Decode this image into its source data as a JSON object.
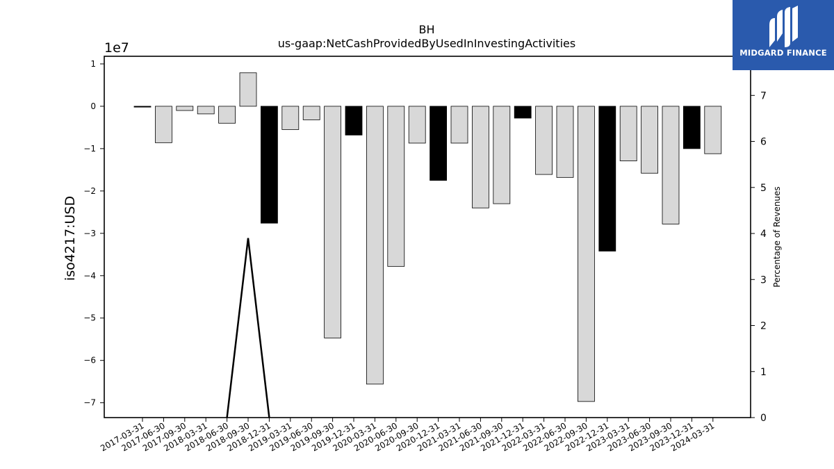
{
  "chart_data": {
    "type": "bar",
    "title": "BH",
    "subtitle": "us-gaap:NetCashProvidedByUsedInInvestingActivities",
    "ylabel": "iso4217:USD",
    "y_offset_label": "1e7",
    "y2label": "Percentage of Revenues",
    "ylim": [
      -73500000,
      11800000
    ],
    "y2lim": [
      0,
      7.85
    ],
    "yticks": [
      1,
      0,
      -1,
      -2,
      -3,
      -4,
      -5,
      -6,
      -7
    ],
    "y2ticks": [
      0,
      1,
      2,
      3,
      4,
      5,
      6,
      7
    ],
    "categories": [
      "2017-03-31",
      "2017-06-30",
      "2017-09-30",
      "2018-03-31",
      "2018-06-30",
      "2018-09-30",
      "2018-12-31",
      "2019-03-31",
      "2019-06-30",
      "2019-09-30",
      "2019-12-31",
      "2020-03-31",
      "2020-06-30",
      "2020-09-30",
      "2020-12-31",
      "2021-03-31",
      "2021-06-30",
      "2021-09-30",
      "2021-12-31",
      "2022-03-31",
      "2022-06-30",
      "2022-09-30",
      "2022-12-31",
      "2023-03-31",
      "2023-06-30",
      "2023-09-30",
      "2023-12-31",
      "2024-03-31"
    ],
    "values": [
      -200000,
      -8600000,
      -1000000,
      -1800000,
      -4000000,
      7900000,
      -27600000,
      -5500000,
      -3200000,
      -54700000,
      -6800000,
      -65600000,
      -37800000,
      -8700000,
      -17500000,
      -8700000,
      -24000000,
      -23000000,
      -2800000,
      -16100000,
      -16800000,
      -69700000,
      -34200000,
      -12900000,
      -15800000,
      -27800000,
      -10000000,
      -11200000
    ],
    "highlighted": [
      true,
      false,
      false,
      false,
      false,
      false,
      true,
      false,
      false,
      false,
      true,
      false,
      false,
      false,
      true,
      false,
      false,
      false,
      true,
      false,
      false,
      false,
      true,
      false,
      false,
      false,
      true,
      false
    ],
    "line_series": {
      "axis": "secondary",
      "points": [
        {
          "x": "2018-06-30",
          "y": 0
        },
        {
          "x": "2018-09-30",
          "y": 3.9
        },
        {
          "x": "2018-12-31",
          "y": 0
        }
      ]
    },
    "colors": {
      "bar": "#d8d8d8",
      "highlight": "#000000",
      "edge": "#000000",
      "line": "#000000"
    },
    "grid": false
  },
  "logo": {
    "text": "MIDGARD FINANCE",
    "background": "#2a5aad"
  }
}
